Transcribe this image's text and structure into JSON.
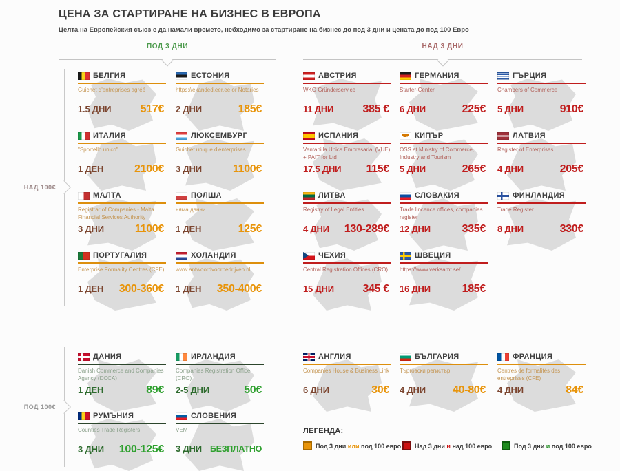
{
  "header": {
    "title": "ЦЕНА ЗА СТАРТИРАНЕ НА БИЗНЕС В ЕВРОПА",
    "subtitle": "Целта на Европейския съюз е да намали времето, небходимо за стартиране на бизнес до под 3 дни и цената до под 100 Евро"
  },
  "group_headers": {
    "left": "ПОД 3 ДНИ",
    "right": "НАД 3 ДНИ"
  },
  "row_labels": {
    "top": "НАД 100€",
    "bottom": "ПОД 100€"
  },
  "colors": {
    "orange": "#E8940A",
    "red": "#C01D1D",
    "green": "#2FA02F",
    "orange_days": "#7C4630",
    "green_days": "#2E6B2E",
    "header_left_text": "#4C9A4C",
    "header_right_text": "#A86868",
    "map_silhouette": "#DCDCDC"
  },
  "sections": [
    {
      "name": "over-100",
      "rows": [
        {
          "cards": [
            {
              "id": "belgium",
              "name": "БЕЛГИЯ",
              "flag": "be",
              "org": "Guichet d'entreprises agréé",
              "days": "1.5 ДНИ",
              "price": "517€",
              "cat": "orange"
            },
            {
              "id": "estonia",
              "name": "ЕСТОНИЯ",
              "flag": "ee",
              "org": "https://ekanded.eer.ee or Notaries",
              "days": "2 ДНИ",
              "price": "185€",
              "cat": "orange"
            },
            {
              "id": "austria",
              "name": "АВСТРИЯ",
              "flag": "at",
              "org": "WKO Gründerservice",
              "days": "11 ДНИ",
              "price": "385 €",
              "cat": "red"
            },
            {
              "id": "germany",
              "name": "ГЕРМАНИЯ",
              "flag": "de",
              "org": "Starter-Center",
              "days": "6 ДНИ",
              "price": "225€",
              "cat": "red"
            },
            {
              "id": "greece",
              "name": "ГЪРЦИЯ",
              "flag": "gr",
              "org": "Chambers of Commerce",
              "days": "5 ДНИ",
              "price": "910€",
              "cat": "red"
            }
          ]
        },
        {
          "cards": [
            {
              "id": "italy",
              "name": "ИТАЛИЯ",
              "flag": "it",
              "org": "\"Sportello unico\"",
              "days": "1 ДЕН",
              "price": "2100€",
              "cat": "orange"
            },
            {
              "id": "luxembourg",
              "name": "ЛЮКСЕМБУРГ",
              "flag": "lu",
              "org": "Guichet unique d'enterprises",
              "days": "3 ДНИ",
              "price": "1100€",
              "cat": "orange"
            },
            {
              "id": "spain",
              "name": "ИСПАНИЯ",
              "flag": "es",
              "org": "Ventanilla Única Empresarial (VUE) + PAIT for Ltd",
              "days": "17.5 ДНИ",
              "price": "115€",
              "cat": "red"
            },
            {
              "id": "cyprus",
              "name": "КИПЪР",
              "flag": "cy",
              "org": "OSS at Ministry of Commerce, Industry and Tourism",
              "days": "5 ДНИ",
              "price": "265€",
              "cat": "red"
            },
            {
              "id": "latvia",
              "name": "ЛАТВИЯ",
              "flag": "lv",
              "org": "Register of Enterprises",
              "days": "4 ДНИ",
              "price": "205€",
              "cat": "red"
            }
          ]
        },
        {
          "cards": [
            {
              "id": "malta",
              "name": "МАЛТА",
              "flag": "mt",
              "org": "Registrar of Companies - Malta Financial Services Authority (MFSA)",
              "days": "3 ДНИ",
              "price": "1100€",
              "cat": "orange"
            },
            {
              "id": "poland",
              "name": "ПОЛША",
              "flag": "pl",
              "org": "няма данни",
              "days": "1 ДЕН",
              "price": "125€",
              "cat": "orange"
            },
            {
              "id": "lithuania",
              "name": "ЛИТВА",
              "flag": "lt",
              "org": "Registry of Legal Entities",
              "days": "4 ДНИ",
              "price": "130-289€",
              "cat": "red"
            },
            {
              "id": "slovakia",
              "name": "СЛОВАКИЯ",
              "flag": "sk",
              "org": "Trade lincence offices, companies register",
              "days": "12 ДНИ",
              "price": "335€",
              "cat": "red"
            },
            {
              "id": "finland",
              "name": "ФИНЛАНДИЯ",
              "flag": "fi",
              "org": "Trade Register",
              "days": "8 ДНИ",
              "price": "330€",
              "cat": "red"
            }
          ]
        },
        {
          "cards": [
            {
              "id": "portugal",
              "name": "ПОРТУГАЛИЯ",
              "flag": "pt",
              "org": "Enterprise Formality Centres (CFE)",
              "days": "1 ДЕН",
              "price": "300-360€",
              "cat": "orange"
            },
            {
              "id": "netherlands",
              "name": "ХОЛАНДИЯ",
              "flag": "nl",
              "org": "www.antwoordvoorbedrijven.nl",
              "days": "1 ДЕН",
              "price": "350-400€",
              "cat": "orange"
            },
            {
              "id": "czechia",
              "name": "ЧЕХИЯ",
              "flag": "cz",
              "org": "Central Registration Offices (CRO)",
              "days": "15 ДНИ",
              "price": "345 €",
              "cat": "red"
            },
            {
              "id": "sweden",
              "name": "ШВЕЦИЯ",
              "flag": "se",
              "org": "https://www.verksamt.se/",
              "days": "16 ДНИ",
              "price": "185€",
              "cat": "red"
            }
          ]
        }
      ]
    },
    {
      "name": "under-100",
      "rows": [
        {
          "cards": [
            {
              "id": "denmark",
              "name": "ДАНИЯ",
              "flag": "dk",
              "org": "Danish Commerce and Companies Agency (DCCA)",
              "days": "1 ДЕН",
              "price": "89€",
              "cat": "green"
            },
            {
              "id": "ireland",
              "name": "ИРЛАНДИЯ",
              "flag": "ie",
              "org": "Companies Registration Office (CRO)",
              "days": "2-5 ДНИ",
              "price": "50€",
              "cat": "green"
            },
            {
              "id": "england",
              "name": "АНГЛИЯ",
              "flag": "gb",
              "org": "Companies House & Business Link",
              "days": "6 ДНИ",
              "price": "30€",
              "cat": "orange"
            },
            {
              "id": "bulgaria",
              "name": "БЪЛГАРИЯ",
              "flag": "bg",
              "org": "Търговски регистър",
              "days": "4 ДНИ",
              "price": "40-80€",
              "cat": "orange"
            },
            {
              "id": "france",
              "name": "ФРАНЦИЯ",
              "flag": "fr",
              "org": "Centres de formalités des entreprises (CFE)",
              "days": "4 ДНИ",
              "price": "84€",
              "cat": "orange"
            }
          ]
        },
        {
          "cards": [
            {
              "id": "romania",
              "name": "РУМЪНИЯ",
              "flag": "ro",
              "org": "Counties Trade Registers",
              "days": "3 ДНИ",
              "price": "100-125€",
              "cat": "green"
            },
            {
              "id": "slovenia",
              "name": "СЛОВЕНИЯ",
              "flag": "si",
              "org": "VEM",
              "days": "3 ДНИ",
              "price": "БЕЗПЛАТНО",
              "cat": "green"
            }
          ]
        }
      ]
    }
  ],
  "legend": {
    "title": "ЛЕГЕНДА:",
    "items": [
      {
        "cat": "orange",
        "pre": "Под 3 дни",
        "conj": "или",
        "post": "под 100 евро"
      },
      {
        "cat": "red",
        "pre": "Над 3 дни",
        "conj": "и",
        "post": "над 100 евро"
      },
      {
        "cat": "green",
        "pre": "Под 3 дни",
        "conj": "и",
        "post": "под 100 евро"
      }
    ]
  }
}
